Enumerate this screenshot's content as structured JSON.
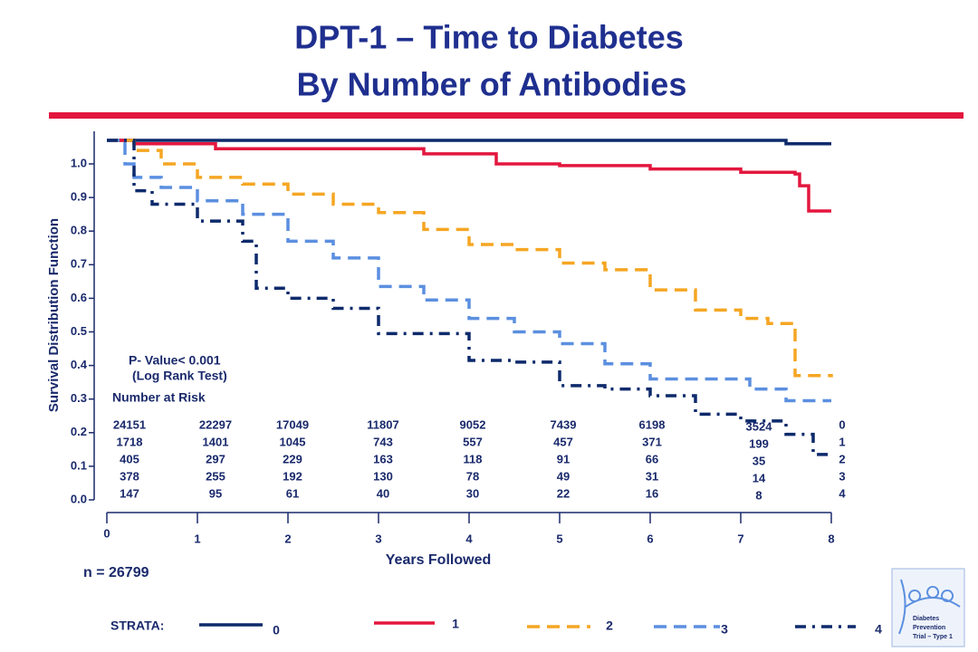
{
  "chart_data": {
    "type": "step",
    "title": "DPT-1 – Time to Diabetes",
    "subtitle": "By Number of Antibodies",
    "y_label": "Survival Distribution Function",
    "x_label": "Years Followed",
    "xlim": [
      0,
      8
    ],
    "ylim": [
      0,
      1.1
    ],
    "xticks": [
      0,
      1,
      2,
      3,
      4,
      5,
      6,
      7,
      8
    ],
    "yticks": [
      {
        "value": 0,
        "label": "0.0"
      },
      0.1,
      0.2,
      0.3,
      0.4,
      0.5,
      0.6,
      0.7,
      0.8,
      0.9,
      {
        "value": 1,
        "label": "1.0"
      }
    ],
    "legend_title": "STRATA:",
    "legend_position": "bottom",
    "series": [
      {
        "name": "0",
        "color": "#0d2a6b",
        "line_style": "solid",
        "x": [
          0,
          0.1,
          1.2,
          2.5,
          5,
          7.5,
          8
        ],
        "values": [
          1.07,
          1.07,
          1.07,
          1.07,
          1.07,
          1.06,
          1.06
        ]
      },
      {
        "name": "1",
        "color": "#e3173e",
        "line_style": "solid",
        "x": [
          0,
          0.3,
          1.2,
          3.5,
          4.3,
          5,
          6,
          7,
          7.6,
          7.65,
          7.75,
          8
        ],
        "values": [
          1.07,
          1.06,
          1.045,
          1.03,
          1.0,
          0.995,
          0.985,
          0.975,
          0.97,
          0.935,
          0.86,
          0.86
        ]
      },
      {
        "name": "2",
        "color": "#f5a623",
        "line_style": "dashed",
        "x": [
          0,
          0.3,
          0.6,
          1,
          1.5,
          2,
          2.5,
          3,
          3.5,
          4,
          4.5,
          5,
          5.5,
          6,
          6.5,
          7,
          7.3,
          7.6,
          8
        ],
        "values": [
          1.07,
          1.04,
          1.0,
          0.96,
          0.94,
          0.91,
          0.88,
          0.855,
          0.805,
          0.76,
          0.745,
          0.705,
          0.685,
          0.625,
          0.565,
          0.54,
          0.525,
          0.37,
          0.365
        ]
      },
      {
        "name": "3",
        "color": "#5b8fe0",
        "line_style": "dashed",
        "x": [
          0,
          0.2,
          0.3,
          0.6,
          1,
          1.5,
          2,
          2.5,
          3,
          3.5,
          4,
          4.5,
          5,
          5.5,
          6,
          7,
          7.1,
          7.5,
          8
        ],
        "values": [
          1.07,
          1.0,
          0.96,
          0.93,
          0.89,
          0.85,
          0.77,
          0.72,
          0.635,
          0.595,
          0.54,
          0.5,
          0.465,
          0.405,
          0.36,
          0.36,
          0.33,
          0.295,
          0.295
        ]
      },
      {
        "name": "4",
        "color": "#0d2a6b",
        "line_style": "dashdot",
        "x": [
          0,
          0.3,
          0.5,
          1,
          1.5,
          1.65,
          2,
          2.5,
          3,
          3.5,
          4,
          4.5,
          5,
          5.5,
          6,
          6.5,
          7,
          7.5,
          7.8,
          8
        ],
        "values": [
          1.07,
          0.92,
          0.88,
          0.83,
          0.77,
          0.63,
          0.6,
          0.57,
          0.495,
          0.495,
          0.415,
          0.41,
          0.34,
          0.33,
          0.31,
          0.255,
          0.235,
          0.195,
          0.135,
          0.135
        ]
      }
    ]
  },
  "annotations": {
    "p_value": "P- Value< 0.001",
    "test": "(Log Rank Test)",
    "n": "n = 26799"
  },
  "number_at_risk": {
    "title": "Number at Risk",
    "columns": [
      [
        24151,
        1718,
        405,
        378,
        147
      ],
      [
        22297,
        1401,
        297,
        255,
        95
      ],
      [
        17049,
        1045,
        229,
        192,
        61
      ],
      [
        11807,
        743,
        163,
        130,
        40
      ],
      [
        9052,
        557,
        118,
        78,
        30
      ],
      [
        7439,
        457,
        91,
        49,
        22
      ],
      [
        6198,
        371,
        66,
        31,
        16
      ],
      [
        3524,
        199,
        35,
        14,
        8
      ]
    ],
    "row_labels": [
      "0",
      "1",
      "2",
      "3",
      "4"
    ]
  },
  "logo": {
    "line1": "Diabetes",
    "line2": "Prevention",
    "line3": "Trial – Type 1"
  }
}
